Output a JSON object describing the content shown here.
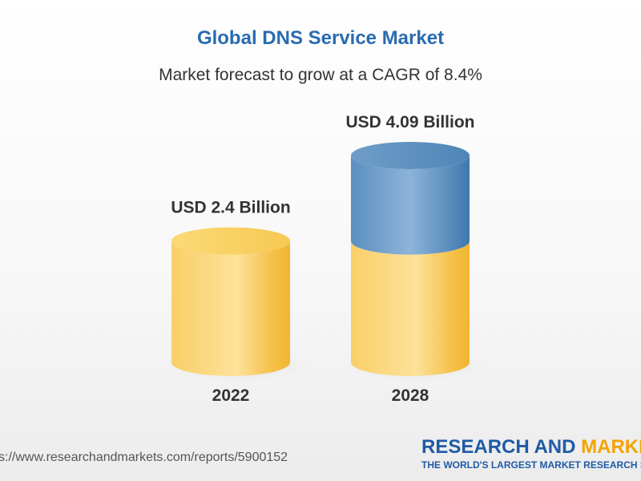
{
  "chart_data": {
    "type": "bar",
    "title": "Global DNS Service Market",
    "subtitle": "Market forecast to grow at a CAGR of 8.4%",
    "categories": [
      "2022",
      "2028"
    ],
    "values": [
      2.4,
      4.09
    ],
    "data_labels": [
      "USD 2.4 Billion",
      "USD 4.09 Billion"
    ],
    "ylim": [
      0,
      4.09
    ],
    "grid": false,
    "bar_style": "3d-cylinder",
    "colors": {
      "base": "#f6c54a",
      "growth": "#4f86b8"
    }
  },
  "footer": {
    "source_url": "s://www.researchandmarkets.com/reports/5900152",
    "brand_part1": "RESEARCH AND ",
    "brand_part2": "MARKET",
    "brand_tagline": "THE WORLD'S LARGEST MARKET RESEARCH ST"
  }
}
